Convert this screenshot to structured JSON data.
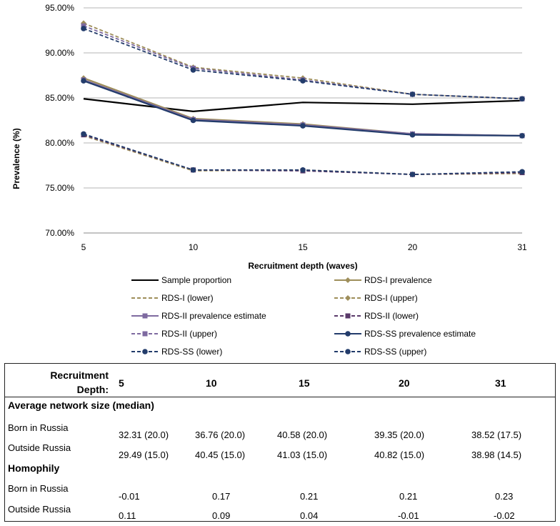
{
  "chart_data": {
    "type": "line",
    "xlabel": "Recruitment depth (waves)",
    "ylabel": "Prevalence (%)",
    "categories": [
      "5",
      "10",
      "15",
      "20",
      "31"
    ],
    "y_ticks": [
      "70.00%",
      "75.00%",
      "80.00%",
      "85.00%",
      "90.00%",
      "95.00%"
    ],
    "ylim": [
      70,
      95
    ],
    "grid": "horizontal",
    "legend_position": "bottom",
    "series": [
      {
        "name": "Sample proportion",
        "values": [
          84.9,
          83.5,
          84.5,
          84.3,
          84.7
        ],
        "color": "#000000",
        "dash": "solid",
        "marker": "none"
      },
      {
        "name": "RDS-I prevalence",
        "values": [
          87.2,
          82.7,
          82.1,
          81.0,
          80.8
        ],
        "color": "#9e8e5a",
        "dash": "solid",
        "marker": "diamond"
      },
      {
        "name": "RDS-I (lower)",
        "values": [
          80.8,
          76.9,
          77.0,
          76.5,
          76.6
        ],
        "color": "#9e8e5a",
        "dash": "dashed",
        "marker": "none"
      },
      {
        "name": "RDS-I (upper)",
        "values": [
          93.3,
          88.4,
          87.2,
          85.4,
          84.9
        ],
        "color": "#9e8e5a",
        "dash": "dashed",
        "marker": "diamond"
      },
      {
        "name": "RDS-II prevalence estimate",
        "values": [
          87.0,
          82.6,
          82.0,
          81.0,
          80.8
        ],
        "color": "#7e6aa0",
        "dash": "solid",
        "marker": "square"
      },
      {
        "name": "RDS-II (lower)",
        "values": [
          80.9,
          77.0,
          76.9,
          76.5,
          76.7
        ],
        "color": "#5a3a6a",
        "dash": "dashed",
        "marker": "square"
      },
      {
        "name": "RDS-II (upper)",
        "values": [
          93.0,
          88.3,
          87.0,
          85.4,
          84.9
        ],
        "color": "#7e6aa0",
        "dash": "dashed",
        "marker": "square"
      },
      {
        "name": "RDS-SS prevalence estimate",
        "values": [
          86.9,
          82.5,
          81.9,
          80.9,
          80.8
        ],
        "color": "#233c6b",
        "dash": "solid",
        "marker": "circle"
      },
      {
        "name": "RDS-SS (lower)",
        "values": [
          81.0,
          77.0,
          77.0,
          76.5,
          76.8
        ],
        "color": "#233c6b",
        "dash": "dashed",
        "marker": "circle"
      },
      {
        "name": "RDS-SS (upper)",
        "values": [
          92.7,
          88.1,
          86.9,
          85.4,
          84.9
        ],
        "color": "#233c6b",
        "dash": "dashed",
        "marker": "circle"
      }
    ]
  },
  "table": {
    "header_label": [
      "Recruitment",
      "Depth:"
    ],
    "columns": [
      "5",
      "10",
      "15",
      "20",
      "31"
    ],
    "sections": [
      {
        "title": "Average network size (median)",
        "rows": [
          {
            "label": "Born in Russia",
            "values": [
              "32.31 (20.0)",
              "36.76 (20.0)",
              "40.58 (20.0)",
              "39.35 (20.0)",
              "38.52 (17.5)"
            ]
          },
          {
            "label": "Outside Russia",
            "values": [
              "29.49 (15.0)",
              "40.45 (15.0)",
              "41.03 (15.0)",
              "40.82 (15.0)",
              "38.98 (14.5)"
            ]
          }
        ]
      },
      {
        "title": "Homophily",
        "rows": [
          {
            "label": "Born in Russia",
            "values": [
              "-0.01",
              "0.17",
              "0.21",
              "0.21",
              "0.23"
            ]
          },
          {
            "label": "Outside Russia",
            "values": [
              "0.11",
              "0.09",
              "0.04",
              "-0.01",
              "-0.02"
            ]
          }
        ]
      }
    ]
  }
}
